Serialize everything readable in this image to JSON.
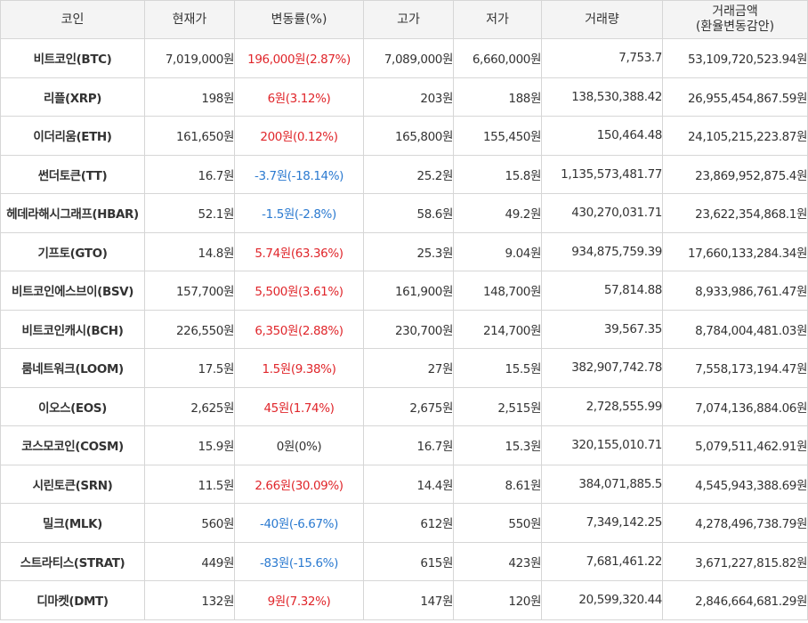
{
  "headers": {
    "coin": "코인",
    "price": "현재가",
    "change": "변동률(%)",
    "high": "고가",
    "low": "저가",
    "volume": "거래량",
    "amount_line1": "거래금액",
    "amount_line2": "(환율변동감안)"
  },
  "colors": {
    "up": "#e0262b",
    "down": "#2b7ad0",
    "flat": "#333333"
  },
  "rows": [
    {
      "name": "비트코인(BTC)",
      "price": "7,019,000원",
      "change": "196,000원(2.87%)",
      "dir": "up",
      "high": "7,089,000원",
      "low": "6,660,000원",
      "volume": "7,753.7",
      "amount": "53,109,720,523.94원"
    },
    {
      "name": "리플(XRP)",
      "price": "198원",
      "change": "6원(3.12%)",
      "dir": "up",
      "high": "203원",
      "low": "188원",
      "volume": "138,530,388.42",
      "amount": "26,955,454,867.59원"
    },
    {
      "name": "이더리움(ETH)",
      "price": "161,650원",
      "change": "200원(0.12%)",
      "dir": "up",
      "high": "165,800원",
      "low": "155,450원",
      "volume": "150,464.48",
      "amount": "24,105,215,223.87원"
    },
    {
      "name": "썬더토큰(TT)",
      "price": "16.7원",
      "change": "-3.7원(-18.14%)",
      "dir": "down",
      "high": "25.2원",
      "low": "15.8원",
      "volume": "1,135,573,481.77",
      "amount": "23,869,952,875.4원"
    },
    {
      "name": "헤데라해시그래프(HBAR)",
      "price": "52.1원",
      "change": "-1.5원(-2.8%)",
      "dir": "down",
      "high": "58.6원",
      "low": "49.2원",
      "volume": "430,270,031.71",
      "amount": "23,622,354,868.1원"
    },
    {
      "name": "기프토(GTO)",
      "price": "14.8원",
      "change": "5.74원(63.36%)",
      "dir": "up",
      "high": "25.3원",
      "low": "9.04원",
      "volume": "934,875,759.39",
      "amount": "17,660,133,284.34원"
    },
    {
      "name": "비트코인에스브이(BSV)",
      "price": "157,700원",
      "change": "5,500원(3.61%)",
      "dir": "up",
      "high": "161,900원",
      "low": "148,700원",
      "volume": "57,814.88",
      "amount": "8,933,986,761.47원"
    },
    {
      "name": "비트코인캐시(BCH)",
      "price": "226,550원",
      "change": "6,350원(2.88%)",
      "dir": "up",
      "high": "230,700원",
      "low": "214,700원",
      "volume": "39,567.35",
      "amount": "8,784,004,481.03원"
    },
    {
      "name": "룸네트워크(LOOM)",
      "price": "17.5원",
      "change": "1.5원(9.38%)",
      "dir": "up",
      "high": "27원",
      "low": "15.5원",
      "volume": "382,907,742.78",
      "amount": "7,558,173,194.47원"
    },
    {
      "name": "이오스(EOS)",
      "price": "2,625원",
      "change": "45원(1.74%)",
      "dir": "up",
      "high": "2,675원",
      "low": "2,515원",
      "volume": "2,728,555.99",
      "amount": "7,074,136,884.06원"
    },
    {
      "name": "코스모코인(COSM)",
      "price": "15.9원",
      "change": "0원(0%)",
      "dir": "flat",
      "high": "16.7원",
      "low": "15.3원",
      "volume": "320,155,010.71",
      "amount": "5,079,511,462.91원"
    },
    {
      "name": "시린토큰(SRN)",
      "price": "11.5원",
      "change": "2.66원(30.09%)",
      "dir": "up",
      "high": "14.4원",
      "low": "8.61원",
      "volume": "384,071,885.5",
      "amount": "4,545,943,388.69원"
    },
    {
      "name": "밀크(MLK)",
      "price": "560원",
      "change": "-40원(-6.67%)",
      "dir": "down",
      "high": "612원",
      "low": "550원",
      "volume": "7,349,142.25",
      "amount": "4,278,496,738.79원"
    },
    {
      "name": "스트라티스(STRAT)",
      "price": "449원",
      "change": "-83원(-15.6%)",
      "dir": "down",
      "high": "615원",
      "low": "423원",
      "volume": "7,681,461.22",
      "amount": "3,671,227,815.82원"
    },
    {
      "name": "디마켓(DMT)",
      "price": "132원",
      "change": "9원(7.32%)",
      "dir": "up",
      "high": "147원",
      "low": "120원",
      "volume": "20,599,320.44",
      "amount": "2,846,664,681.29원"
    }
  ]
}
